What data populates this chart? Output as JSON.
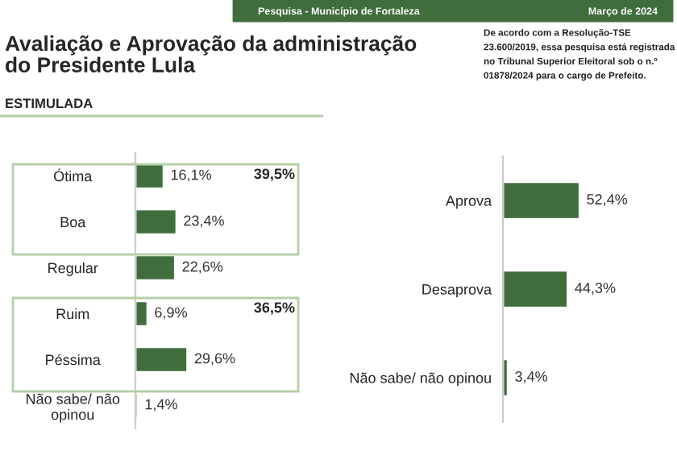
{
  "chart_data": [
    {
      "type": "bar",
      "orientation": "horizontal",
      "title": "Avaliação e Aprovação da administração\ndo Presidente Lula",
      "subtitle": "ESTIMULADA",
      "categories": [
        "Ótima",
        "Boa",
        "Regular",
        "Ruim",
        "Péssima",
        "Não sabe/ não\nopinou"
      ],
      "values": [
        16.1,
        23.4,
        22.6,
        6.9,
        29.6,
        1.4
      ],
      "value_labels": [
        "16,1%",
        "23,4%",
        "22,6%",
        "6,9%",
        "29,6%",
        "1,4%"
      ],
      "color": "#3f6e3c",
      "annotations": [
        "39,5%",
        "36,5%",
        "Pesquisa - Município de Fortaleza",
        "Março de 2024",
        "De acordo com a Resolução-TSE\n23.600/2019, essa pesquisa está registrada\nno Tribunal Superior Eleitoral sob o n.º\n01878/2024 para o cargo de Prefeito."
      ],
      "grid": false,
      "legend": false
    },
    {
      "type": "bar",
      "orientation": "horizontal",
      "categories": [
        "Aprova",
        "Desaprova",
        "Não sabe/ não opinou"
      ],
      "values": [
        52.4,
        44.3,
        3.4
      ],
      "value_labels": [
        "52,4%",
        "44,3%",
        "3,4%"
      ],
      "color": "#3f6e3c",
      "grid": false,
      "legend": false
    }
  ]
}
